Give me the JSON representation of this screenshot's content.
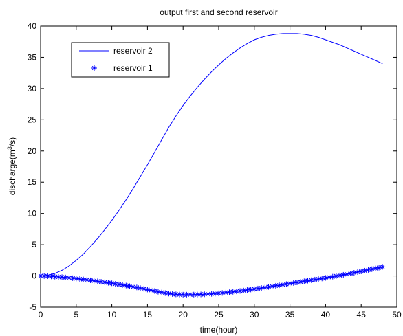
{
  "chart_data": {
    "type": "line",
    "title": "output first and second reservoir",
    "xlabel": "time(hour)",
    "ylabel": {
      "prefix": "discharge(m",
      "superscript": "3",
      "suffix": "/s)"
    },
    "xlim": [
      0,
      50
    ],
    "ylim": [
      -5,
      40
    ],
    "xticks": [
      0,
      5,
      10,
      15,
      20,
      25,
      30,
      35,
      40,
      45,
      50
    ],
    "yticks": [
      -5,
      0,
      5,
      10,
      15,
      20,
      25,
      30,
      35,
      40
    ],
    "grid": false,
    "legend_position": "top-left",
    "series": [
      {
        "name": "reservoir 2",
        "style": "line",
        "color": "#0000ff",
        "x": [
          0,
          1,
          2,
          3,
          4,
          5,
          6,
          7,
          8,
          9,
          10,
          11,
          12,
          13,
          14,
          15,
          16,
          17,
          18,
          19,
          20,
          21,
          22,
          23,
          24,
          25,
          26,
          27,
          28,
          29,
          30,
          31,
          32,
          33,
          34,
          35,
          36,
          37,
          38,
          39,
          40,
          41,
          42,
          43,
          44,
          45,
          46,
          47,
          48
        ],
        "y": [
          0.0,
          0.1,
          0.4,
          0.9,
          1.6,
          2.5,
          3.5,
          4.7,
          6.0,
          7.4,
          8.9,
          10.5,
          12.2,
          14.0,
          15.9,
          17.8,
          19.8,
          21.8,
          23.8,
          25.6,
          27.3,
          28.8,
          30.2,
          31.5,
          32.7,
          33.8,
          34.8,
          35.7,
          36.5,
          37.2,
          37.8,
          38.2,
          38.5,
          38.7,
          38.8,
          38.8,
          38.8,
          38.7,
          38.5,
          38.2,
          37.8,
          37.4,
          37.0,
          36.5,
          36.0,
          35.5,
          35.0,
          34.5,
          34.0
        ]
      },
      {
        "name": "reservoir 1",
        "style": "marker",
        "marker": "asterisk",
        "color": "#0000ff",
        "x": [
          0,
          0.5,
          1,
          1.5,
          2,
          2.5,
          3,
          3.5,
          4,
          4.5,
          5,
          5.5,
          6,
          6.5,
          7,
          7.5,
          8,
          8.5,
          9,
          9.5,
          10,
          10.5,
          11,
          11.5,
          12,
          12.5,
          13,
          13.5,
          14,
          14.5,
          15,
          15.5,
          16,
          16.5,
          17,
          17.5,
          18,
          18.5,
          19,
          19.5,
          20,
          20.5,
          21,
          21.5,
          22,
          22.5,
          23,
          23.5,
          24,
          24.5,
          25,
          25.5,
          26,
          26.5,
          27,
          27.5,
          28,
          28.5,
          29,
          29.5,
          30,
          30.5,
          31,
          31.5,
          32,
          32.5,
          33,
          33.5,
          34,
          34.5,
          35,
          35.5,
          36,
          36.5,
          37,
          37.5,
          38,
          38.5,
          39,
          39.5,
          40,
          40.5,
          41,
          41.5,
          42,
          42.5,
          43,
          43.5,
          44,
          44.5,
          45,
          45.5,
          46,
          46.5,
          47,
          47.5,
          48
        ],
        "y": [
          0.0,
          -0.02,
          -0.05,
          -0.08,
          -0.12,
          -0.16,
          -0.2,
          -0.25,
          -0.3,
          -0.36,
          -0.42,
          -0.49,
          -0.56,
          -0.63,
          -0.7,
          -0.78,
          -0.86,
          -0.94,
          -1.02,
          -1.1,
          -1.18,
          -1.27,
          -1.36,
          -1.45,
          -1.54,
          -1.64,
          -1.74,
          -1.84,
          -1.95,
          -2.06,
          -2.18,
          -2.3,
          -2.42,
          -2.54,
          -2.65,
          -2.75,
          -2.83,
          -2.9,
          -2.95,
          -2.98,
          -3.0,
          -3.0,
          -3.0,
          -2.99,
          -2.98,
          -2.96,
          -2.94,
          -2.91,
          -2.87,
          -2.83,
          -2.78,
          -2.73,
          -2.67,
          -2.61,
          -2.55,
          -2.48,
          -2.41,
          -2.34,
          -2.26,
          -2.18,
          -2.1,
          -2.02,
          -1.93,
          -1.85,
          -1.76,
          -1.67,
          -1.58,
          -1.49,
          -1.4,
          -1.31,
          -1.22,
          -1.13,
          -1.04,
          -0.95,
          -0.86,
          -0.77,
          -0.68,
          -0.59,
          -0.5,
          -0.41,
          -0.32,
          -0.22,
          -0.12,
          -0.02,
          0.08,
          0.18,
          0.28,
          0.39,
          0.5,
          0.61,
          0.72,
          0.84,
          0.96,
          1.08,
          1.2,
          1.32,
          1.45
        ]
      }
    ]
  }
}
